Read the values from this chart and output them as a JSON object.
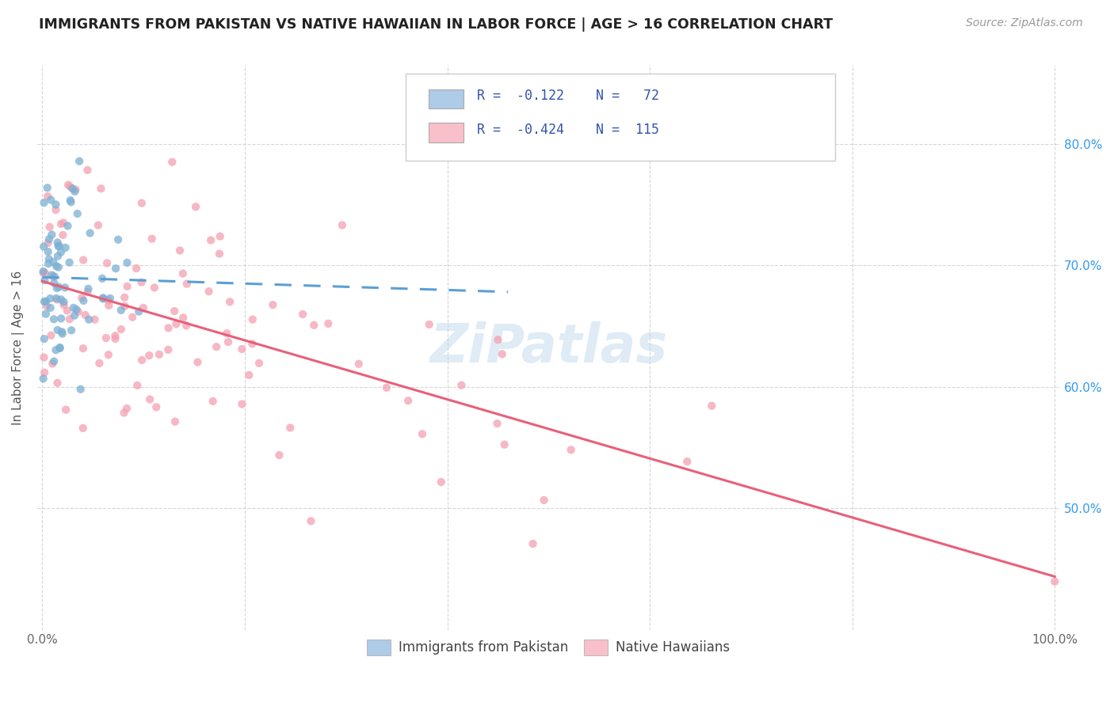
{
  "title": "IMMIGRANTS FROM PAKISTAN VS NATIVE HAWAIIAN IN LABOR FORCE | AGE > 16 CORRELATION CHART",
  "source": "Source: ZipAtlas.com",
  "ylabel": "In Labor Force | Age > 16",
  "blue_color": "#7BAFD4",
  "pink_color": "#F4A0B0",
  "blue_fill": "#AECBE8",
  "pink_fill": "#F9C0CC",
  "trend_blue": "#5B9FD4",
  "trend_pink": "#E8607A",
  "watermark": "ZiPatlas",
  "watermark_color": "#B8D4EA",
  "legend_r1": "R =  -0.122",
  "legend_n1": "N =   72",
  "legend_r2": "R =  -0.424",
  "legend_n2": "N =  115",
  "legend_color": "#3355AA"
}
